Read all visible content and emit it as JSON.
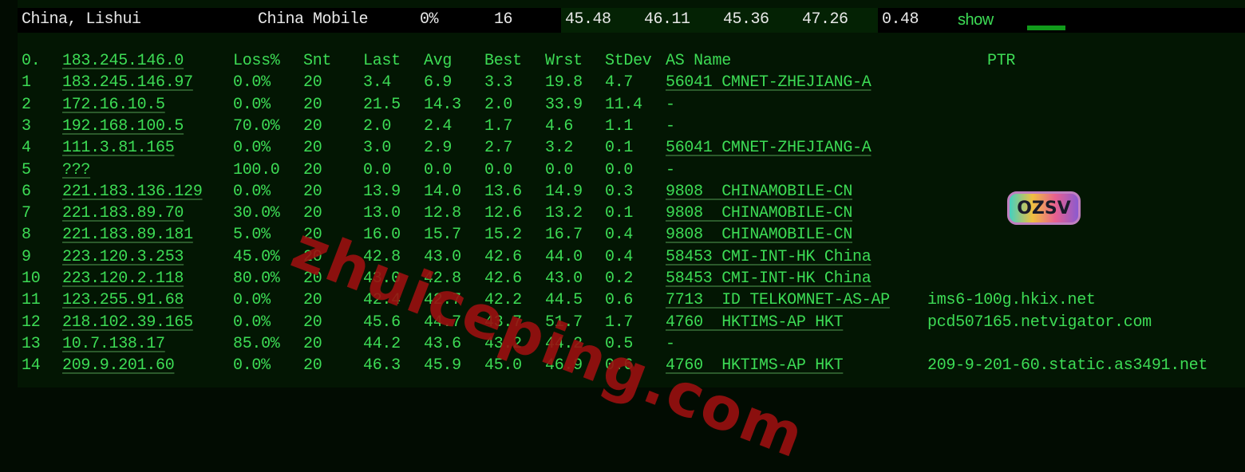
{
  "summary": {
    "location": "China, Lishui",
    "provider": "China Mobile",
    "loss": "0%",
    "sent": "16",
    "last": "45.48",
    "avg": "46.11",
    "best": "45.36",
    "worst": "47.26",
    "stdev": "0.48",
    "show_link": "show",
    "bar_color": "#119b1b"
  },
  "header": {
    "index": "0.",
    "host": "183.245.146.0",
    "loss": "Loss%",
    "snt": "Snt",
    "last": "Last",
    "avg": "Avg",
    "best": "Best",
    "wrst": "Wrst",
    "stdev": "StDev",
    "as": "AS Name",
    "ptr": "PTR"
  },
  "hops": [
    {
      "n": "1",
      "host": "183.245.146.97",
      "loss": "0.0%",
      "snt": "20",
      "last": "3.4",
      "avg": "6.9",
      "best": "3.3",
      "wrst": "19.8",
      "stdev": "4.7",
      "as": "56041 CMNET-ZHEJIANG-A",
      "ptr": ""
    },
    {
      "n": "2",
      "host": "172.16.10.5",
      "loss": "0.0%",
      "snt": "20",
      "last": "21.5",
      "avg": "14.3",
      "best": "2.0",
      "wrst": "33.9",
      "stdev": "11.4",
      "as": "-",
      "ptr": ""
    },
    {
      "n": "3",
      "host": "192.168.100.5",
      "loss": "70.0%",
      "snt": "20",
      "last": "2.0",
      "avg": "2.4",
      "best": "1.7",
      "wrst": "4.6",
      "stdev": "1.1",
      "as": "-",
      "ptr": ""
    },
    {
      "n": "4",
      "host": "111.3.81.165",
      "loss": "0.0%",
      "snt": "20",
      "last": "3.0",
      "avg": "2.9",
      "best": "2.7",
      "wrst": "3.2",
      "stdev": "0.1",
      "as": "56041 CMNET-ZHEJIANG-A",
      "ptr": ""
    },
    {
      "n": "5",
      "host": "???",
      "loss": "100.0",
      "snt": "20",
      "last": "0.0",
      "avg": "0.0",
      "best": "0.0",
      "wrst": "0.0",
      "stdev": "0.0",
      "as": "-",
      "ptr": ""
    },
    {
      "n": "6",
      "host": "221.183.136.129",
      "loss": "0.0%",
      "snt": "20",
      "last": "13.9",
      "avg": "14.0",
      "best": "13.6",
      "wrst": "14.9",
      "stdev": "0.3",
      "as": "9808  CHINAMOBILE-CN",
      "ptr": ""
    },
    {
      "n": "7",
      "host": "221.183.89.70",
      "loss": "30.0%",
      "snt": "20",
      "last": "13.0",
      "avg": "12.8",
      "best": "12.6",
      "wrst": "13.2",
      "stdev": "0.1",
      "as": "9808  CHINAMOBILE-CN",
      "ptr": ""
    },
    {
      "n": "8",
      "host": "221.183.89.181",
      "loss": "5.0%",
      "snt": "20",
      "last": "16.0",
      "avg": "15.7",
      "best": "15.2",
      "wrst": "16.7",
      "stdev": "0.4",
      "as": "9808  CHINAMOBILE-CN",
      "ptr": ""
    },
    {
      "n": "9",
      "host": "223.120.3.253",
      "loss": "45.0%",
      "snt": "20",
      "last": "42.8",
      "avg": "43.0",
      "best": "42.6",
      "wrst": "44.0",
      "stdev": "0.4",
      "as": "58453 CMI-INT-HK China",
      "ptr": ""
    },
    {
      "n": "10",
      "host": "223.120.2.118",
      "loss": "80.0%",
      "snt": "20",
      "last": "43.0",
      "avg": "42.8",
      "best": "42.6",
      "wrst": "43.0",
      "stdev": "0.2",
      "as": "58453 CMI-INT-HK China",
      "ptr": ""
    },
    {
      "n": "11",
      "host": "123.255.91.68",
      "loss": "0.0%",
      "snt": "20",
      "last": "42.4",
      "avg": "42.7",
      "best": "42.2",
      "wrst": "44.5",
      "stdev": "0.6",
      "as": "7713  ID TELKOMNET-AS-AP",
      "ptr": "ims6-100g.hkix.net"
    },
    {
      "n": "12",
      "host": "218.102.39.165",
      "loss": "0.0%",
      "snt": "20",
      "last": "45.6",
      "avg": "44.7",
      "best": "43.7",
      "wrst": "51.7",
      "stdev": "1.7",
      "as": "4760  HKTIMS-AP HKT",
      "ptr": "pcd507165.netvigator.com"
    },
    {
      "n": "13",
      "host": "10.7.138.17",
      "loss": "85.0%",
      "snt": "20",
      "last": "44.2",
      "avg": "43.6",
      "best": "43.2",
      "wrst": "44.2",
      "stdev": "0.5",
      "as": "-",
      "ptr": ""
    },
    {
      "n": "14",
      "host": "209.9.201.60",
      "loss": "0.0%",
      "snt": "20",
      "last": "46.3",
      "avg": "45.9",
      "best": "45.0",
      "wrst": "46.9",
      "stdev": "0.6",
      "as": "4760  HKTIMS-AP HKT",
      "ptr": "209-9-201-60.static.as3491.net"
    }
  ],
  "watermark": "zhuiceping.com",
  "logo": "OZSV",
  "colors": {
    "text": "#3ddc55",
    "background": "#031603",
    "watermark": "#9a1010"
  }
}
